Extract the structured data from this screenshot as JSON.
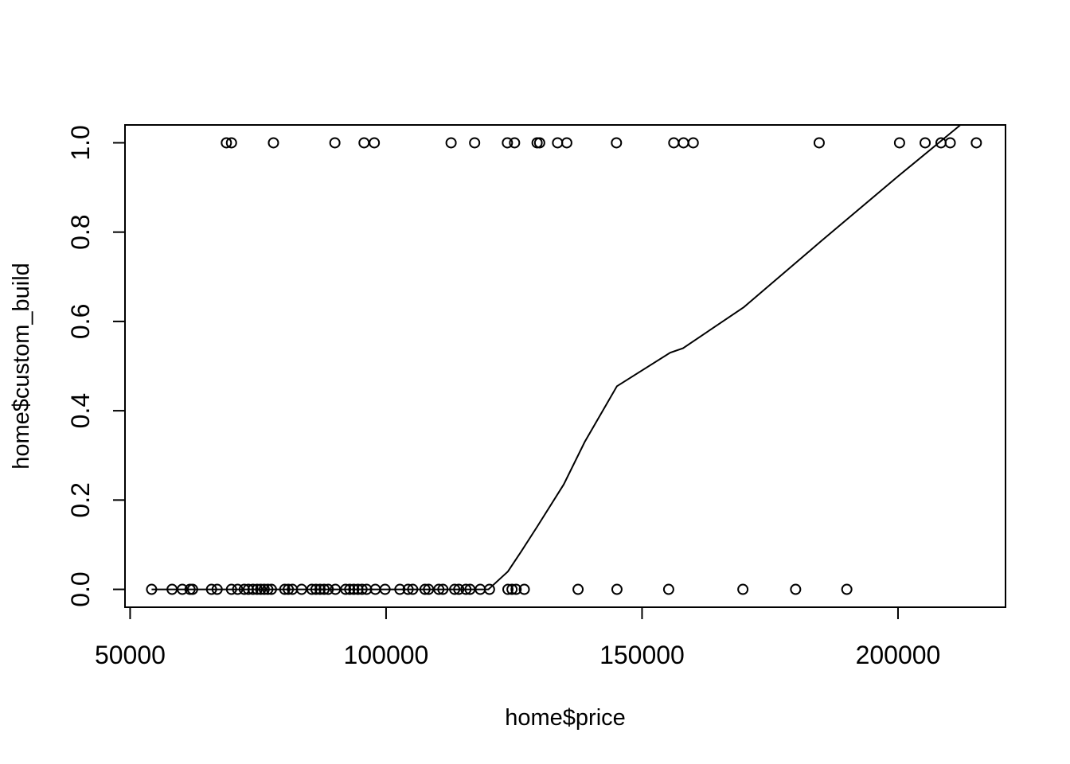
{
  "chart_data": {
    "type": "scatter",
    "title": "",
    "xlabel": "home$price",
    "ylabel": "home$custom_build",
    "xlim": [
      49000,
      221000
    ],
    "ylim": [
      -0.04,
      1.04
    ],
    "x_ticks": [
      50000,
      100000,
      150000,
      200000
    ],
    "x_tick_labels": [
      "50000",
      "100000",
      "150000",
      "200000"
    ],
    "y_ticks": [
      0.0,
      0.2,
      0.4,
      0.6,
      0.8,
      1.0
    ],
    "y_tick_labels": [
      "0.0",
      "0.2",
      "0.4",
      "0.6",
      "0.8",
      "1.0"
    ],
    "grid": false,
    "legend": "none",
    "point_symbol": "open-circle",
    "colors": {
      "points": "#000000",
      "line": "#000000",
      "frame": "#000000",
      "background": "#ffffff"
    },
    "points": [
      {
        "x": 68800,
        "y": 1
      },
      {
        "x": 69800,
        "y": 1
      },
      {
        "x": 78000,
        "y": 1
      },
      {
        "x": 90000,
        "y": 1
      },
      {
        "x": 95700,
        "y": 1
      },
      {
        "x": 97700,
        "y": 1
      },
      {
        "x": 112700,
        "y": 1
      },
      {
        "x": 117300,
        "y": 1
      },
      {
        "x": 123700,
        "y": 1
      },
      {
        "x": 125100,
        "y": 1
      },
      {
        "x": 129500,
        "y": 1
      },
      {
        "x": 130000,
        "y": 1
      },
      {
        "x": 133500,
        "y": 1
      },
      {
        "x": 135300,
        "y": 1
      },
      {
        "x": 145000,
        "y": 1
      },
      {
        "x": 156200,
        "y": 1
      },
      {
        "x": 158100,
        "y": 1
      },
      {
        "x": 160000,
        "y": 1
      },
      {
        "x": 184600,
        "y": 1
      },
      {
        "x": 200300,
        "y": 1
      },
      {
        "x": 205300,
        "y": 1
      },
      {
        "x": 208400,
        "y": 1
      },
      {
        "x": 210200,
        "y": 1
      },
      {
        "x": 215300,
        "y": 1
      },
      {
        "x": 54200,
        "y": 0
      },
      {
        "x": 58200,
        "y": 0
      },
      {
        "x": 60200,
        "y": 0
      },
      {
        "x": 61700,
        "y": 0
      },
      {
        "x": 62200,
        "y": 0
      },
      {
        "x": 65900,
        "y": 0
      },
      {
        "x": 67000,
        "y": 0
      },
      {
        "x": 69800,
        "y": 0
      },
      {
        "x": 71000,
        "y": 0
      },
      {
        "x": 72300,
        "y": 0
      },
      {
        "x": 73100,
        "y": 0
      },
      {
        "x": 74000,
        "y": 0
      },
      {
        "x": 74800,
        "y": 0
      },
      {
        "x": 75500,
        "y": 0
      },
      {
        "x": 76200,
        "y": 0
      },
      {
        "x": 76900,
        "y": 0
      },
      {
        "x": 77600,
        "y": 0
      },
      {
        "x": 80200,
        "y": 0
      },
      {
        "x": 80900,
        "y": 0
      },
      {
        "x": 81700,
        "y": 0
      },
      {
        "x": 83500,
        "y": 0
      },
      {
        "x": 85500,
        "y": 0
      },
      {
        "x": 86300,
        "y": 0
      },
      {
        "x": 87100,
        "y": 0
      },
      {
        "x": 87900,
        "y": 0
      },
      {
        "x": 88700,
        "y": 0
      },
      {
        "x": 90100,
        "y": 0
      },
      {
        "x": 92100,
        "y": 0
      },
      {
        "x": 92900,
        "y": 0
      },
      {
        "x": 93700,
        "y": 0
      },
      {
        "x": 94500,
        "y": 0
      },
      {
        "x": 95300,
        "y": 0
      },
      {
        "x": 96200,
        "y": 0
      },
      {
        "x": 97900,
        "y": 0
      },
      {
        "x": 99800,
        "y": 0
      },
      {
        "x": 102700,
        "y": 0
      },
      {
        "x": 104300,
        "y": 0
      },
      {
        "x": 105200,
        "y": 0
      },
      {
        "x": 107600,
        "y": 0
      },
      {
        "x": 108300,
        "y": 0
      },
      {
        "x": 110300,
        "y": 0
      },
      {
        "x": 111100,
        "y": 0
      },
      {
        "x": 113400,
        "y": 0
      },
      {
        "x": 114200,
        "y": 0
      },
      {
        "x": 115600,
        "y": 0
      },
      {
        "x": 116400,
        "y": 0
      },
      {
        "x": 118400,
        "y": 0
      },
      {
        "x": 120200,
        "y": 0
      },
      {
        "x": 123800,
        "y": 0
      },
      {
        "x": 124600,
        "y": 0
      },
      {
        "x": 125400,
        "y": 0
      },
      {
        "x": 127000,
        "y": 0
      },
      {
        "x": 137500,
        "y": 0
      },
      {
        "x": 145100,
        "y": 0
      },
      {
        "x": 155200,
        "y": 0
      },
      {
        "x": 169700,
        "y": 0
      },
      {
        "x": 180000,
        "y": 0
      },
      {
        "x": 190000,
        "y": 0
      }
    ],
    "fit_line": [
      {
        "x": 54200,
        "y": 0.0
      },
      {
        "x": 120000,
        "y": 0.0
      },
      {
        "x": 123800,
        "y": 0.04
      },
      {
        "x": 126400,
        "y": 0.085
      },
      {
        "x": 129500,
        "y": 0.14
      },
      {
        "x": 134700,
        "y": 0.235
      },
      {
        "x": 138800,
        "y": 0.33
      },
      {
        "x": 145100,
        "y": 0.455
      },
      {
        "x": 155500,
        "y": 0.53
      },
      {
        "x": 158000,
        "y": 0.54
      },
      {
        "x": 169900,
        "y": 0.632
      },
      {
        "x": 185000,
        "y": 0.78
      },
      {
        "x": 200000,
        "y": 0.925
      },
      {
        "x": 212200,
        "y": 1.04
      }
    ]
  }
}
